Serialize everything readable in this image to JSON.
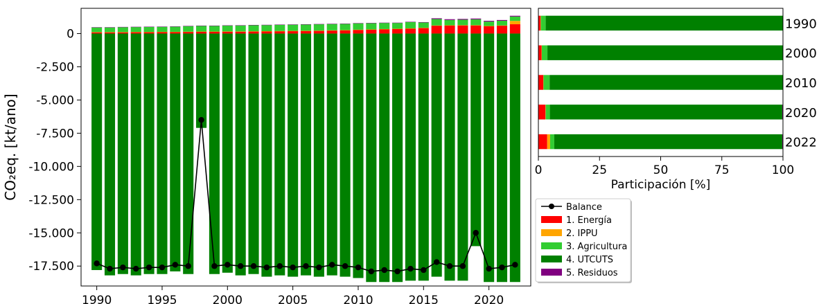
{
  "colors": {
    "energia": "#ff0000",
    "ippu": "#ffa500",
    "agricultura": "#32cd32",
    "utcuts": "#008000",
    "residuos": "#800080",
    "balance": "#000000"
  },
  "chart_data": [
    {
      "type": "bar",
      "subtype": "stacked-with-line",
      "ylabel": "CO$_2$eq. [kt/ano]",
      "ylabel_display": "CO₂eq. [kt/ano]",
      "ylim": [
        -19000,
        1900
      ],
      "yticks": [
        0,
        -2500,
        -5000,
        -7500,
        -10000,
        -12500,
        -15000,
        -17500
      ],
      "ytick_labels": [
        "0",
        "-2.500",
        "-5.000",
        "-7.500",
        "-10.000",
        "-12.500",
        "-15.000",
        "-17.500"
      ],
      "xlim": [
        1988.8,
        2023.2
      ],
      "xticks": [
        1990,
        1995,
        2000,
        2005,
        2010,
        2015,
        2020
      ],
      "xtick_labels": [
        "1990",
        "1995",
        "2000",
        "2005",
        "2010",
        "2015",
        "2020"
      ],
      "grid": false,
      "x": [
        1990,
        1991,
        1992,
        1993,
        1994,
        1995,
        1996,
        1997,
        1998,
        1999,
        2000,
        2001,
        2002,
        2003,
        2004,
        2005,
        2006,
        2007,
        2008,
        2009,
        2010,
        2011,
        2012,
        2013,
        2014,
        2015,
        2016,
        2017,
        2018,
        2019,
        2020,
        2021,
        2022
      ],
      "series": [
        {
          "name": "1. Energía",
          "color_key": "energia",
          "values": [
            100,
            100,
            100,
            110,
            110,
            120,
            120,
            130,
            140,
            140,
            150,
            150,
            160,
            170,
            180,
            190,
            200,
            210,
            230,
            250,
            280,
            300,
            330,
            350,
            380,
            420,
            600,
            610,
            620,
            620,
            560,
            600,
            700
          ]
        },
        {
          "name": "2. IPPU",
          "color_key": "ippu",
          "values": [
            10,
            10,
            10,
            10,
            10,
            10,
            10,
            10,
            10,
            10,
            10,
            10,
            10,
            10,
            10,
            10,
            10,
            10,
            10,
            10,
            10,
            10,
            10,
            10,
            10,
            10,
            10,
            10,
            10,
            10,
            10,
            10,
            250
          ]
        },
        {
          "name": "3. Agricultura",
          "color_key": "agricultura",
          "values": [
            350,
            350,
            370,
            370,
            380,
            380,
            390,
            420,
            430,
            430,
            440,
            450,
            460,
            460,
            470,
            470,
            470,
            480,
            480,
            470,
            480,
            470,
            460,
            440,
            480,
            400,
            480,
            400,
            410,
            440,
            330,
            350,
            330
          ]
        },
        {
          "name": "4. UTCUTS",
          "color_key": "utcuts",
          "values": [
            -17800,
            -18200,
            -18100,
            -18200,
            -18100,
            -18100,
            -17900,
            -18100,
            -7100,
            -18100,
            -18000,
            -18200,
            -18100,
            -18300,
            -18200,
            -18300,
            -18200,
            -18300,
            -18200,
            -18300,
            -18400,
            -18700,
            -18700,
            -18700,
            -18600,
            -18600,
            -18300,
            -18600,
            -18600,
            -16000,
            -18700,
            -18700,
            -18700
          ]
        },
        {
          "name": "5. Residuos",
          "color_key": "residuos",
          "values": [
            20,
            20,
            20,
            20,
            20,
            20,
            20,
            20,
            20,
            20,
            20,
            20,
            20,
            20,
            20,
            20,
            20,
            20,
            20,
            20,
            20,
            20,
            20,
            20,
            20,
            30,
            60,
            60,
            60,
            60,
            60,
            60,
            60
          ]
        }
      ],
      "line": {
        "name": "Balance",
        "color_key": "balance",
        "values": [
          -17300,
          -17700,
          -17600,
          -17700,
          -17600,
          -17600,
          -17400,
          -17500,
          -6500,
          -17500,
          -17400,
          -17500,
          -17500,
          -17600,
          -17500,
          -17600,
          -17500,
          -17600,
          -17400,
          -17500,
          -17600,
          -17900,
          -17800,
          -17900,
          -17700,
          -17800,
          -17200,
          -17500,
          -17500,
          -15000,
          -17700,
          -17600,
          -17400
        ]
      }
    },
    {
      "type": "bar",
      "subtype": "horizontal-stacked-percent",
      "xlabel": "Participación [%]",
      "xlim": [
        0,
        100
      ],
      "xticks": [
        0,
        25,
        50,
        75,
        100
      ],
      "xtick_labels": [
        "0",
        "25",
        "50",
        "75",
        "100"
      ],
      "categories": [
        "1990",
        "2000",
        "2010",
        "2020",
        "2022"
      ],
      "series": [
        {
          "name": "1. Energía",
          "color_key": "energia",
          "values": [
            0.9,
            1.3,
            2.0,
            2.9,
            3.6
          ]
        },
        {
          "name": "2. IPPU",
          "color_key": "ippu",
          "values": [
            0.1,
            0.1,
            0.1,
            0.1,
            1.2
          ]
        },
        {
          "name": "3. Agricultura",
          "color_key": "agricultura",
          "values": [
            2.0,
            2.3,
            2.5,
            1.7,
            1.7
          ]
        },
        {
          "name": "4. UTCUTS",
          "color_key": "utcuts",
          "values": [
            96.9,
            96.2,
            95.3,
            95.0,
            93.2
          ]
        },
        {
          "name": "5. Residuos",
          "color_key": "residuos",
          "values": [
            0.1,
            0.1,
            0.1,
            0.3,
            0.3
          ]
        }
      ]
    }
  ],
  "legend": {
    "placement": "below-right-chart",
    "items": [
      {
        "label": "Balance",
        "kind": "line",
        "color_key": "balance"
      },
      {
        "label": "1. Energía",
        "kind": "patch",
        "color_key": "energia"
      },
      {
        "label": "2. IPPU",
        "kind": "patch",
        "color_key": "ippu"
      },
      {
        "label": "3. Agricultura",
        "kind": "patch",
        "color_key": "agricultura"
      },
      {
        "label": "4. UTCUTS",
        "kind": "patch",
        "color_key": "utcuts"
      },
      {
        "label": "5. Residuos",
        "kind": "patch",
        "color_key": "residuos"
      }
    ]
  }
}
